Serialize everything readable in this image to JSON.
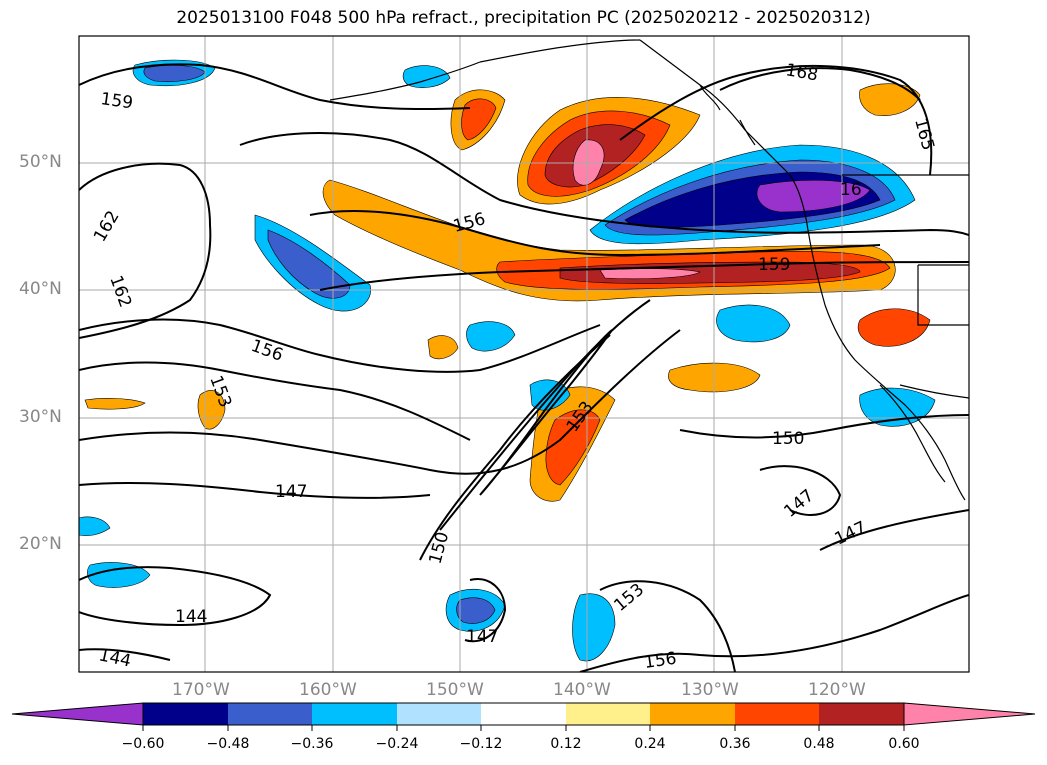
{
  "title": "2025013100 F048 500 hPa refract., precipitation PC (2025020212 - 2025020312)",
  "latitude_labels": [
    "50°N",
    "40°N",
    "30°N",
    "20°N"
  ],
  "longitude_labels": [
    "170°W",
    "160°W",
    "150°W",
    "140°W",
    "130°W",
    "120°W"
  ],
  "contour_labels": [
    "159",
    "162",
    "162",
    "156",
    "153",
    "147",
    "144",
    "144",
    "156",
    "159",
    "168",
    "165",
    "16",
    "153",
    "150",
    "150",
    "147",
    "147",
    "147",
    "153",
    "156"
  ],
  "colorbar": {
    "tick_labels": [
      "−0.60",
      "−0.48",
      "−0.36",
      "−0.24",
      "−0.12",
      "0.12",
      "0.24",
      "0.36",
      "0.48",
      "0.60"
    ],
    "colors": [
      "#9932cc",
      "#00008b",
      "#3a5fcd",
      "#00bfff",
      "#b0e2ff",
      "#ffffff",
      "#fff08b",
      "#ffa500",
      "#ff4500",
      "#b22222",
      "#ff82ab"
    ]
  }
}
